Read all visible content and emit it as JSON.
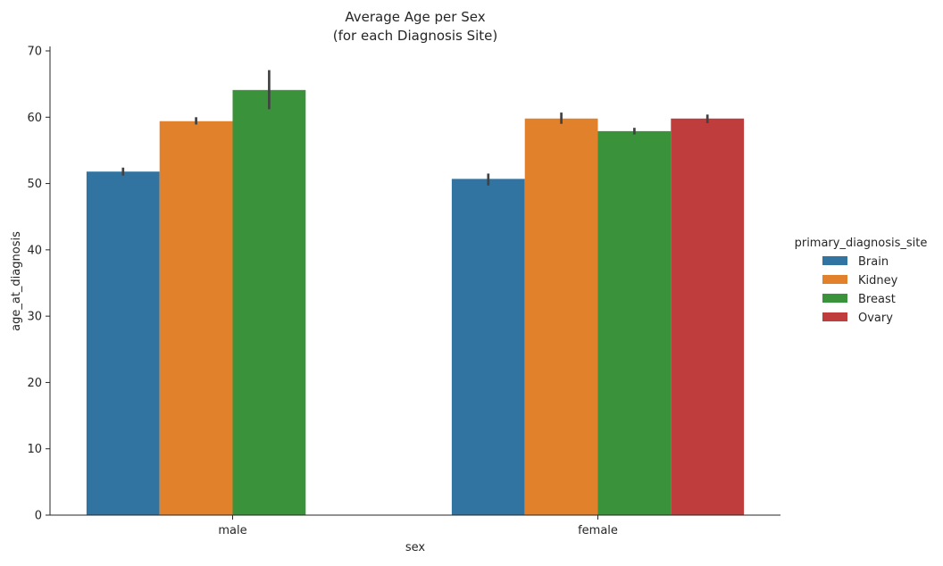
{
  "chart_data": {
    "type": "bar",
    "title": "Average Age per Sex",
    "subtitle": "(for each Diagnosis Site)",
    "xlabel": "sex",
    "ylabel": "age_at_diagnosis",
    "categories": [
      "male",
      "female"
    ],
    "ylim": [
      0,
      70
    ],
    "yticks": [
      0,
      10,
      20,
      30,
      40,
      50,
      60,
      70
    ],
    "legend": {
      "title": "primary_diagnosis_site",
      "placement": "right"
    },
    "grid": false,
    "series": [
      {
        "name": "Brain",
        "color": "#3274a1",
        "values": [
          51.8,
          50.7
        ],
        "ci_low": [
          51.2,
          49.7
        ],
        "ci_high": [
          52.4,
          51.5
        ]
      },
      {
        "name": "Kidney",
        "color": "#e1812c",
        "values": [
          59.4,
          59.8
        ],
        "ci_low": [
          58.9,
          59.0
        ],
        "ci_high": [
          60.0,
          60.7
        ]
      },
      {
        "name": "Breast",
        "color": "#3a923a",
        "values": [
          64.1,
          57.9
        ],
        "ci_low": [
          61.2,
          57.4
        ],
        "ci_high": [
          67.1,
          58.4
        ]
      },
      {
        "name": "Ovary",
        "color": "#c03d3e",
        "values": [
          null,
          59.8
        ],
        "ci_low": [
          null,
          59.1
        ],
        "ci_high": [
          null,
          60.4
        ]
      }
    ]
  }
}
